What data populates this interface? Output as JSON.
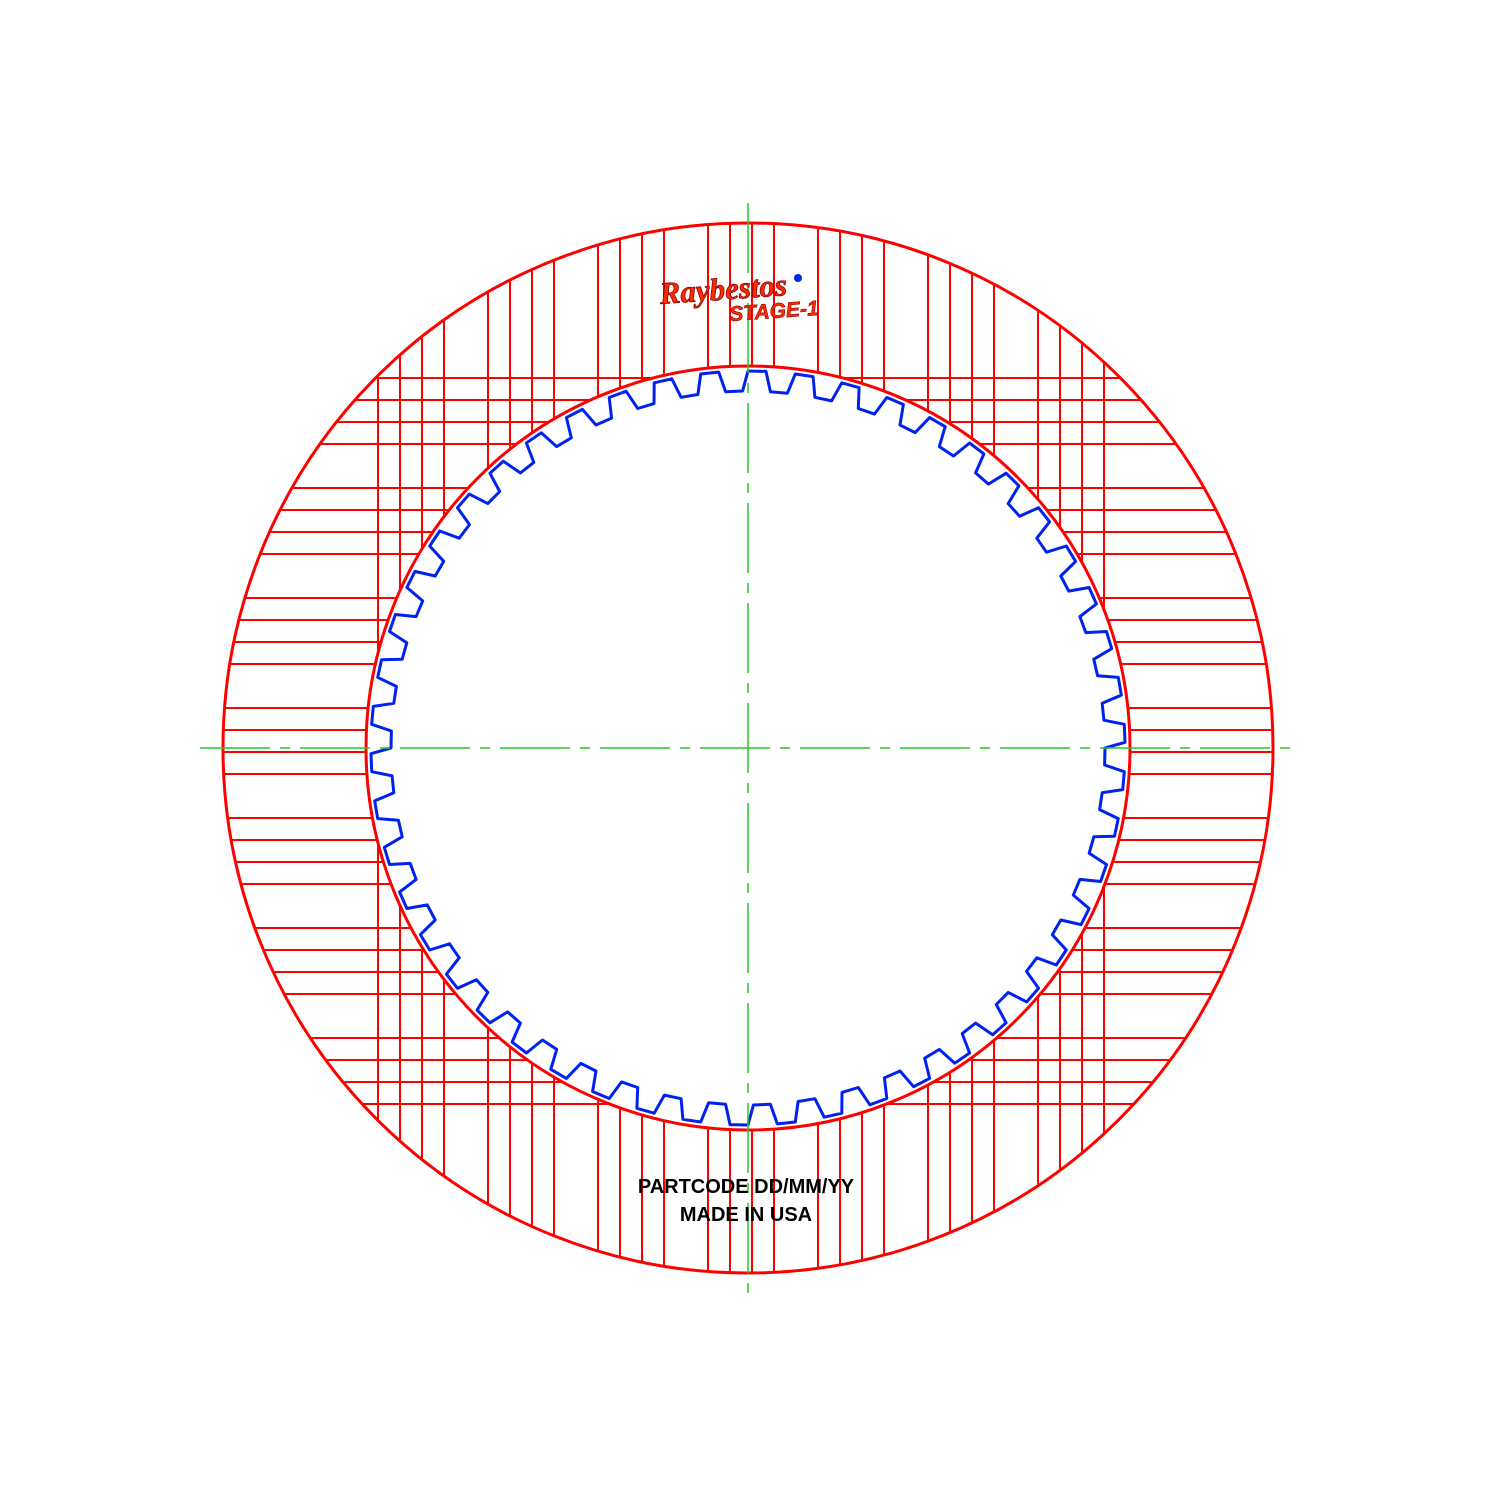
{
  "logo": {
    "brand": "Raybestos",
    "stage": "STAGE-1"
  },
  "labels": {
    "part_code": "PARTCODE DD/MM/YY",
    "origin": "MADE IN USA"
  },
  "colors": {
    "friction": "#ff0000",
    "logo": "#ff2a00",
    "spline": "#0022ee",
    "centerline": "#22cc22",
    "text": "#000000",
    "background": "#ffffff"
  }
}
